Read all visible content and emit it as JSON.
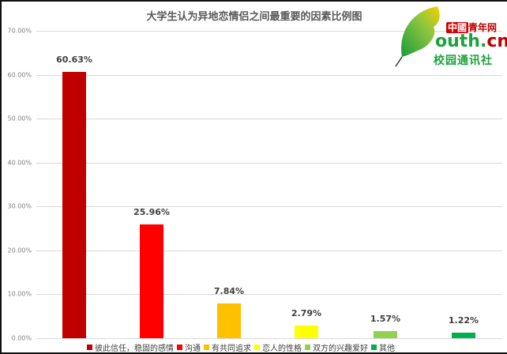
{
  "chart_data": {
    "type": "bar",
    "title": "大学生认为异地恋情侣之间最重要的因素比例图",
    "xlabel": "",
    "ylabel": "",
    "ylim": [
      0,
      70
    ],
    "y_ticks": [
      "0.00%",
      "10.00%",
      "20.00%",
      "30.00%",
      "40.00%",
      "50.00%",
      "60.00%",
      "70.00%"
    ],
    "grid": true,
    "legend_position": "bottom",
    "categories": [
      "彼此信任，稳固的感情",
      "沟通",
      "有共同追求",
      "恋人的性格",
      "双方的兴趣爱好",
      "其他"
    ],
    "values": [
      60.63,
      25.96,
      7.84,
      2.79,
      1.57,
      1.22
    ],
    "value_labels": [
      "60.63%",
      "25.96%",
      "7.84%",
      "2.79%",
      "1.57%",
      "1.22%"
    ],
    "colors": [
      "#c00000",
      "#ff0000",
      "#ffc000",
      "#ffff00",
      "#92d050",
      "#00b050"
    ]
  },
  "logo": {
    "cn_badge": "中國",
    "cn_text": "青年网",
    "en_prefix": "outh.",
    "en_suffix": "cn",
    "sub": "校园通讯社"
  }
}
